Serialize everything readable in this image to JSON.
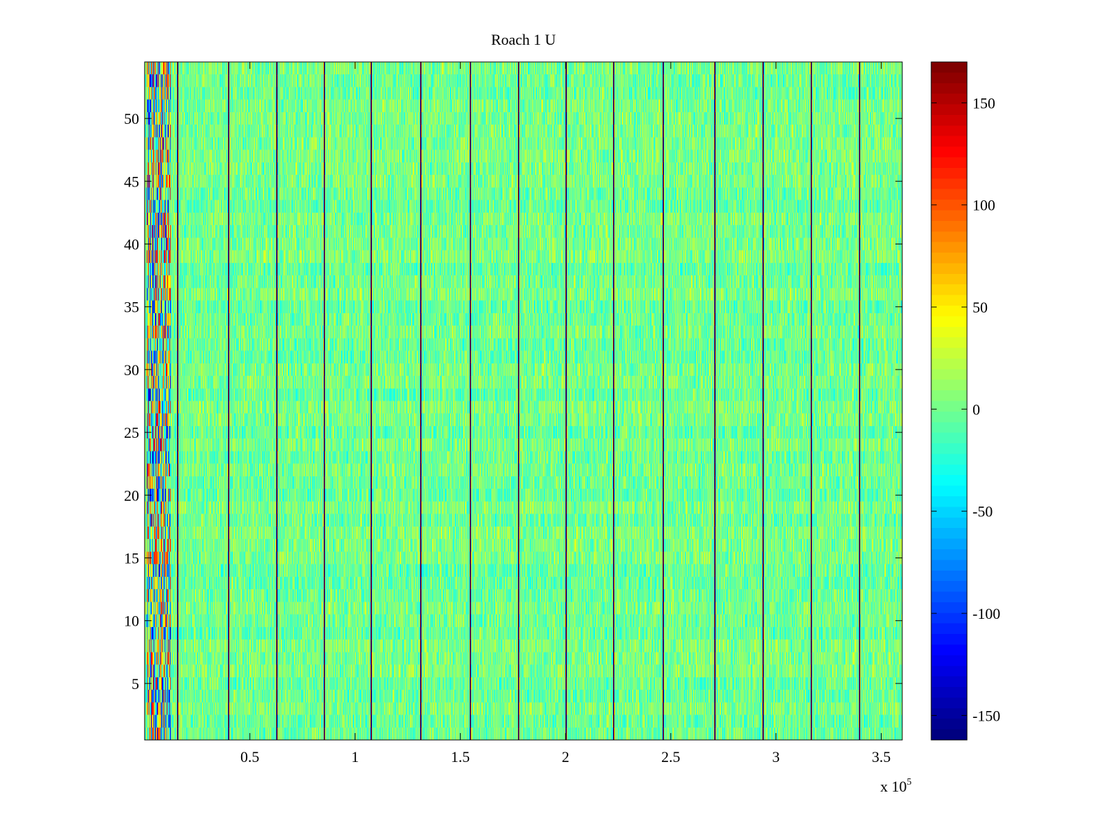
{
  "chart_data": {
    "type": "heatmap",
    "title": "Roach 1 U",
    "xlabel": "",
    "ylabel": "",
    "x_multiplier_label": "x 10",
    "x_multiplier_exponent": "5",
    "xlim": [
      0,
      3.6
    ],
    "ylim": [
      0.5,
      54.5
    ],
    "x_ticks": [
      {
        "value": 0.5,
        "label": "0.5"
      },
      {
        "value": 1.0,
        "label": "1"
      },
      {
        "value": 1.5,
        "label": "1.5"
      },
      {
        "value": 2.0,
        "label": "2"
      },
      {
        "value": 2.5,
        "label": "2.5"
      },
      {
        "value": 3.0,
        "label": "3"
      },
      {
        "value": 3.5,
        "label": "3.5"
      }
    ],
    "y_ticks": [
      {
        "value": 5,
        "label": "5"
      },
      {
        "value": 10,
        "label": "10"
      },
      {
        "value": 15,
        "label": "15"
      },
      {
        "value": 20,
        "label": "20"
      },
      {
        "value": 25,
        "label": "25"
      },
      {
        "value": 30,
        "label": "30"
      },
      {
        "value": 35,
        "label": "35"
      },
      {
        "value": 40,
        "label": "40"
      },
      {
        "value": 45,
        "label": "45"
      },
      {
        "value": 50,
        "label": "50"
      }
    ],
    "colorbar": {
      "colormap": "jet",
      "clim": [
        -162,
        170
      ],
      "ticks": [
        {
          "value": 150,
          "label": "150"
        },
        {
          "value": 100,
          "label": "100"
        },
        {
          "value": 50,
          "label": "50"
        },
        {
          "value": 0,
          "label": "0"
        },
        {
          "value": -50,
          "label": "-50"
        },
        {
          "value": -100,
          "label": "-100"
        },
        {
          "value": -150,
          "label": "-150"
        }
      ]
    },
    "background_value_range": [
      -40,
      40
    ],
    "periodic_stripes_x": [
      0.155,
      0.395,
      0.625,
      0.85,
      1.075,
      1.31,
      1.545,
      1.775,
      2.0,
      2.225,
      2.46,
      2.705,
      2.935,
      3.165,
      3.395
    ],
    "left_anomaly_x_range": [
      0.01,
      0.12
    ],
    "rows": 54
  }
}
